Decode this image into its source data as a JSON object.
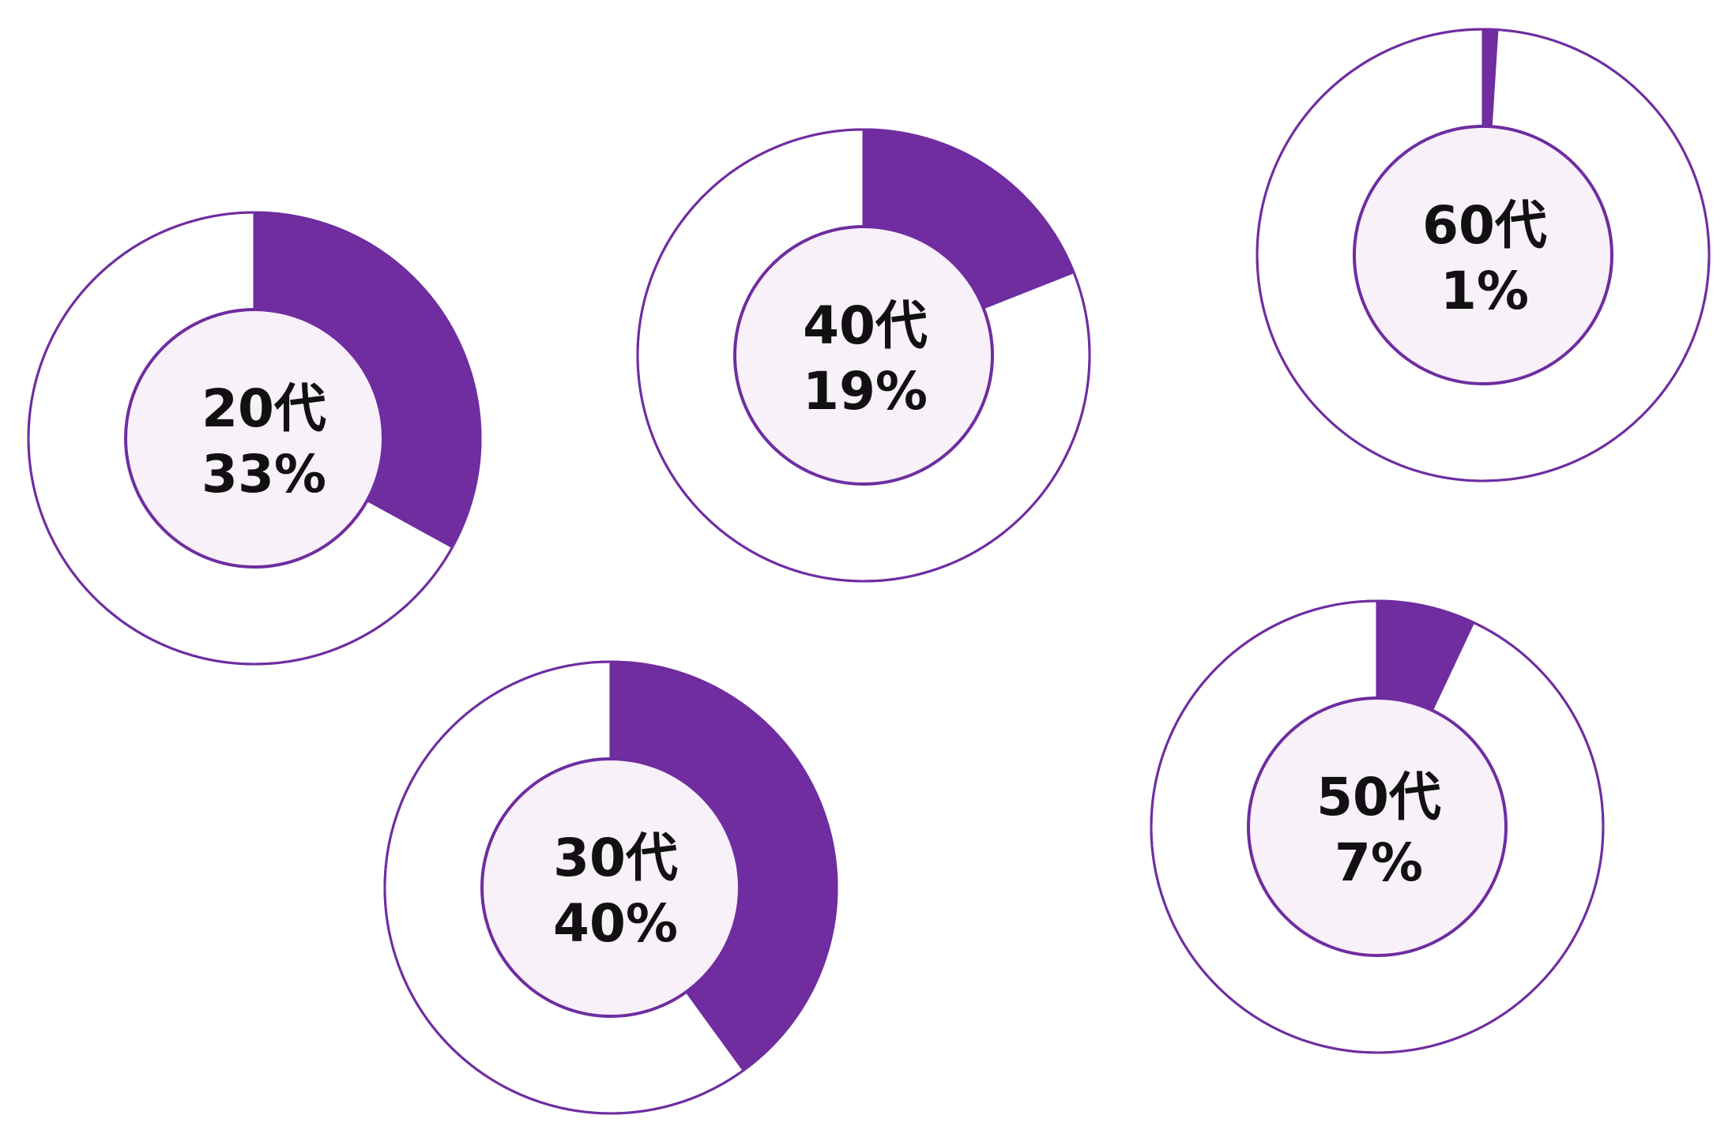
{
  "chart_data": {
    "type": "pie",
    "variant": "donut",
    "colors": {
      "fill": "#6f2da0",
      "outline": "#6f2da0",
      "inner_fill": "#f9f1fa",
      "remainder_fill": "#ffffff"
    },
    "charts": [
      {
        "category": "20代",
        "value": 33,
        "value_label": "33%"
      },
      {
        "category": "30代",
        "value": 40,
        "value_label": "40%"
      },
      {
        "category": "40代",
        "value": 19,
        "value_label": "19%"
      },
      {
        "category": "50代",
        "value": 7,
        "value_label": "7%"
      },
      {
        "category": "60代",
        "value": 1,
        "value_label": "1%"
      }
    ]
  }
}
